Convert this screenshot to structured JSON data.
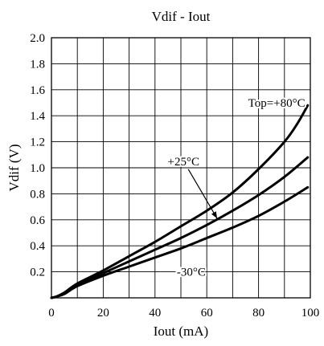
{
  "chart_data": {
    "type": "line",
    "title": "Vdif - Iout",
    "xlabel": "Iout (mA)",
    "ylabel": "Vdif (V)",
    "xlim": [
      0,
      100
    ],
    "ylim": [
      0,
      2.0
    ],
    "x_ticks": [
      0,
      20,
      40,
      60,
      80,
      100
    ],
    "x_tick_labels": [
      "0",
      "20",
      "40",
      "60",
      "80",
      "100"
    ],
    "y_ticks": [
      0.2,
      0.4,
      0.6,
      0.8,
      1.0,
      1.2,
      1.4,
      1.6,
      1.8,
      2.0
    ],
    "y_tick_labels": [
      "0.2",
      "0.4",
      "0.6",
      "0.8",
      "1.0",
      "1.2",
      "1.4",
      "1.6",
      "1.8",
      "2.0"
    ],
    "grid": true,
    "line_color": "#000000",
    "series": [
      {
        "name": "Top=+80°C",
        "x": [
          0,
          2,
          5,
          10,
          20,
          30,
          40,
          50,
          60,
          70,
          80,
          90,
          95,
          99
        ],
        "y": [
          0,
          0.01,
          0.04,
          0.11,
          0.21,
          0.32,
          0.43,
          0.55,
          0.67,
          0.81,
          0.99,
          1.2,
          1.34,
          1.48
        ]
      },
      {
        "name": "+25°C",
        "x": [
          0,
          2,
          5,
          10,
          20,
          30,
          40,
          50,
          60,
          70,
          80,
          90,
          99
        ],
        "y": [
          0,
          0.01,
          0.04,
          0.1,
          0.19,
          0.28,
          0.37,
          0.46,
          0.56,
          0.67,
          0.79,
          0.93,
          1.08
        ]
      },
      {
        "name": "-30°C",
        "x": [
          0,
          2,
          5,
          10,
          20,
          30,
          40,
          50,
          60,
          70,
          80,
          90,
          99
        ],
        "y": [
          0,
          0.01,
          0.03,
          0.09,
          0.17,
          0.24,
          0.31,
          0.38,
          0.46,
          0.54,
          0.63,
          0.74,
          0.85
        ]
      }
    ],
    "annotations": [
      {
        "text": "Top=+80°C",
        "series": 0,
        "x": 87,
        "y": 1.47,
        "anchor": "middle"
      },
      {
        "text": "+25°C",
        "series": 1,
        "x": 51,
        "y": 1.02,
        "anchor": "middle",
        "arrow_to": [
          64,
          0.61
        ]
      },
      {
        "text": "-30°C",
        "series": 2,
        "x": 54,
        "y": 0.17,
        "anchor": "middle"
      }
    ]
  }
}
